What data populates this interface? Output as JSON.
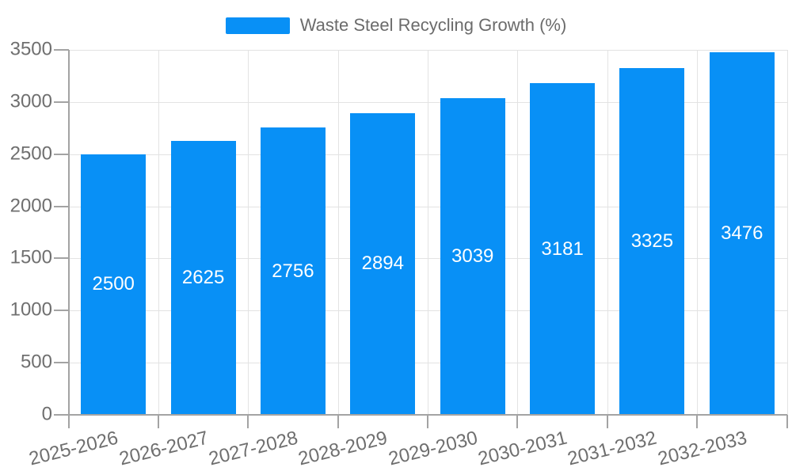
{
  "legend": {
    "label": "Waste Steel Recycling Growth (%)"
  },
  "chart_data": {
    "type": "bar",
    "title": "Waste Steel Recycling Growth (%)",
    "categories": [
      "2025-2026",
      "2026-2027",
      "2027-2028",
      "2028-2029",
      "2029-2030",
      "2030-2031",
      "2031-2032",
      "2032-2033"
    ],
    "values": [
      2500,
      2625,
      2756,
      2894,
      3039,
      3181,
      3325,
      3476
    ],
    "bar_value_labels": [
      "2500",
      "2625",
      "2756",
      "2894",
      "3039",
      "3181",
      "3325",
      "3476"
    ],
    "xlabel": "",
    "ylabel": "",
    "ylim": [
      0,
      3500
    ],
    "y_ticks": [
      0,
      500,
      1000,
      1500,
      2000,
      2500,
      3000,
      3500
    ],
    "grid": true,
    "legend_position": "top-center",
    "x_label_rotation_deg": -14,
    "colors": {
      "bar": "#0890f6",
      "grid_line": "#e3e3e3",
      "axis_line": "#a3a3a3",
      "tick_label": "#6f6f6f",
      "legend_text": "#6b6b6b",
      "value_label": "#ffffff"
    }
  }
}
